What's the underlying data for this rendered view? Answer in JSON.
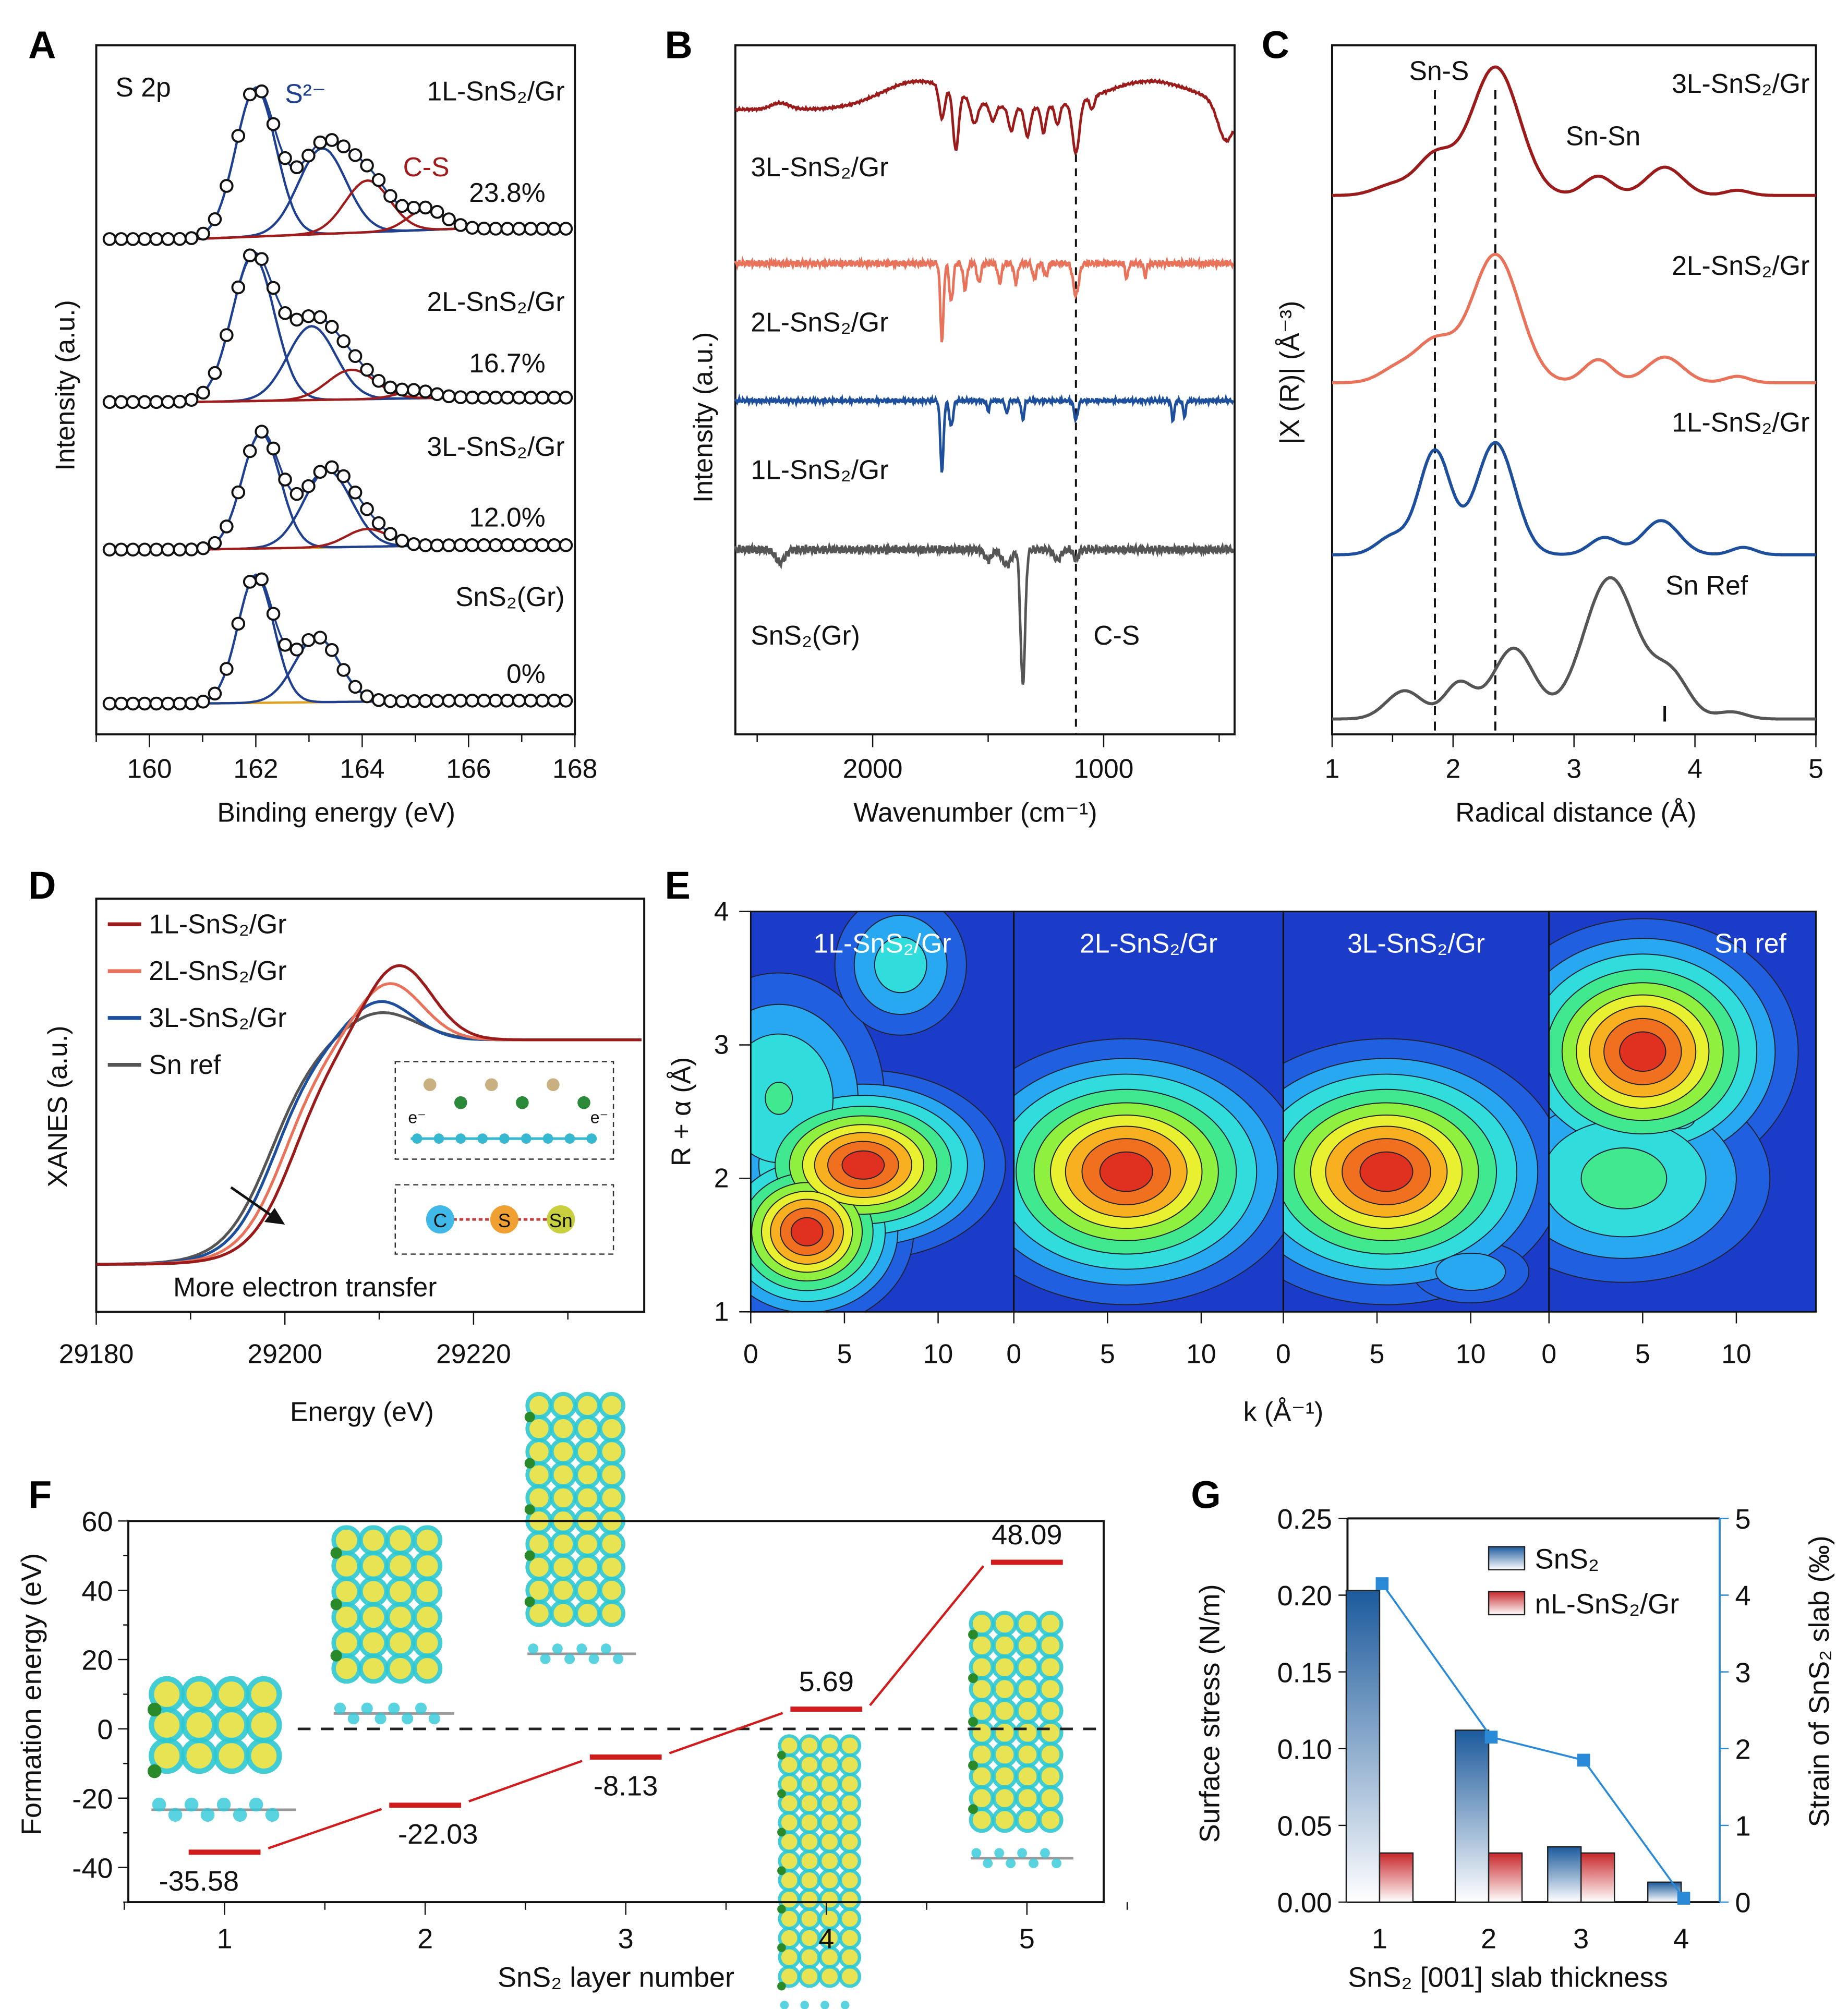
{
  "panel_letters": [
    "A",
    "B",
    "C",
    "D",
    "E",
    "F",
    "G"
  ],
  "colors": {
    "s2": "#1f3f8f",
    "cs": "#a01c1c",
    "background_fit": "#e0a020",
    "l1": "#1d4f9c",
    "l2": "#e8735a",
    "l3": "#9b1b1b",
    "ref": "#555555",
    "bar_snS2": "#1c5a9c",
    "bar_gr": "#c8282c",
    "strain": "#2a8ad8",
    "level": "#d01c1c"
  },
  "chart_data": [
    {
      "panel": "A",
      "type": "line",
      "title": "S 2p",
      "xlabel": "Binding energy (eV)",
      "ylabel": "Intensity (a.u.)",
      "xlim": [
        159,
        168
      ],
      "xticks": [
        160,
        162,
        164,
        166,
        168
      ],
      "x_reversed": false,
      "component_labels": {
        "s2": "S²⁻",
        "cs": "C-S"
      },
      "series": [
        {
          "name": "1L-SnS₂/Gr",
          "cs_fraction": "23.8%",
          "s2_peaks": [
            [
              162.0,
              1.0,
              0.38
            ],
            [
              163.25,
              0.58,
              0.45
            ]
          ],
          "cs_peaks": [
            [
              164.1,
              0.35,
              0.42
            ],
            [
              165.2,
              0.14,
              0.35
            ]
          ],
          "tail": 0.07
        },
        {
          "name": "2L-SnS₂/Gr",
          "cs_fraction": "16.7%",
          "s2_peaks": [
            [
              161.95,
              0.98,
              0.4
            ],
            [
              163.05,
              0.5,
              0.45
            ]
          ],
          "cs_peaks": [
            [
              163.8,
              0.2,
              0.45
            ],
            [
              165.0,
              0.05,
              0.35
            ]
          ],
          "tail": 0.03
        },
        {
          "name": "3L-SnS₂/Gr",
          "cs_fraction": "12.0%",
          "s2_peaks": [
            [
              162.1,
              0.78,
              0.36
            ],
            [
              163.35,
              0.52,
              0.45
            ]
          ],
          "cs_peaks": [
            [
              164.1,
              0.12,
              0.4
            ]
          ],
          "tail": 0.03
        },
        {
          "name": "SnS₂(Gr)",
          "cs_fraction": "0%",
          "s2_peaks": [
            [
              162.0,
              0.86,
              0.34
            ],
            [
              163.15,
              0.44,
              0.42
            ]
          ],
          "cs_peaks": [],
          "tail": 0.02
        }
      ]
    },
    {
      "panel": "B",
      "type": "line",
      "xlabel": "Wavenumber (cm⁻¹)",
      "ylabel": "Intensity (a.u.)",
      "xlim": [
        2600,
        430
      ],
      "xticks": [
        2000,
        1000
      ],
      "x_reversed": true,
      "marker_line_cm": 1120,
      "marker_label": "C-S",
      "series": [
        {
          "name": "3L-SnS₂/Gr",
          "features": [
            [
              2400,
              -5,
              40
            ],
            [
              1800,
              -22,
              160
            ],
            [
              1700,
              25,
              12
            ],
            [
              1640,
              45,
              12
            ],
            [
              1560,
              18,
              15
            ],
            [
              1480,
              12,
              12
            ],
            [
              1400,
              18,
              12
            ],
            [
              1330,
              22,
              12
            ],
            [
              1260,
              20,
              10
            ],
            [
              1200,
              15,
              10
            ],
            [
              1120,
              40,
              15
            ],
            [
              1050,
              10,
              10
            ],
            [
              800,
              -22,
              200
            ],
            [
              470,
              30,
              35
            ]
          ],
          "noise": 1
        },
        {
          "name": "2L-SnS₂/Gr",
          "features": [
            [
              1700,
              60,
              7
            ],
            [
              1660,
              30,
              8
            ],
            [
              1600,
              20,
              8
            ],
            [
              1540,
              15,
              8
            ],
            [
              1450,
              15,
              8
            ],
            [
              1380,
              15,
              8
            ],
            [
              1300,
              12,
              8
            ],
            [
              1250,
              10,
              8
            ],
            [
              1120,
              25,
              12
            ],
            [
              900,
              12,
              6
            ],
            [
              820,
              10,
              6
            ]
          ],
          "noise": 3
        },
        {
          "name": "1L-SnS₂/Gr",
          "features": [
            [
              1700,
              55,
              7
            ],
            [
              1660,
              20,
              8
            ],
            [
              1500,
              8,
              6
            ],
            [
              1420,
              10,
              6
            ],
            [
              1350,
              15,
              6
            ],
            [
              1120,
              15,
              8
            ],
            [
              700,
              15,
              6
            ],
            [
              650,
              12,
              6
            ]
          ],
          "noise": 2
        },
        {
          "name": "SnS₂(Gr)",
          "features": [
            [
              2400,
              10,
              20
            ],
            [
              1500,
              8,
              15
            ],
            [
              1420,
              12,
              20
            ],
            [
              1350,
              105,
              10
            ],
            [
              1200,
              8,
              15
            ],
            [
              1120,
              8,
              10
            ]
          ],
          "noise": 4
        }
      ]
    },
    {
      "panel": "C",
      "type": "line",
      "xlabel": "Radical distance (Å)",
      "ylabel": "|X (R)| (Å⁻³)",
      "xlim": [
        1,
        5
      ],
      "xticks": [
        1,
        2,
        3,
        4,
        5
      ],
      "marker_lines": [
        1.85,
        2.35
      ],
      "bond_labels": [
        "Sn-S",
        "Sn-Sn"
      ],
      "series": [
        {
          "name": "3L-SnS₂/Gr",
          "peaks": [
            [
              1.5,
              0.08,
              0.15
            ],
            [
              1.85,
              0.3,
              0.15
            ],
            [
              2.35,
              1.0,
              0.2
            ],
            [
              3.2,
              0.15,
              0.12
            ],
            [
              3.75,
              0.22,
              0.15
            ],
            [
              4.35,
              0.04,
              0.1
            ]
          ]
        },
        {
          "name": "2L-SnS₂/Gr",
          "peaks": [
            [
              1.55,
              0.12,
              0.15
            ],
            [
              1.85,
              0.3,
              0.15
            ],
            [
              2.35,
              1.0,
              0.2
            ],
            [
              3.2,
              0.18,
              0.12
            ],
            [
              3.75,
              0.2,
              0.15
            ],
            [
              4.35,
              0.05,
              0.1
            ]
          ]
        },
        {
          "name": "1L-SnS₂/Gr",
          "peaks": [
            [
              1.5,
              0.15,
              0.13
            ],
            [
              1.85,
              0.85,
              0.13
            ],
            [
              2.35,
              0.92,
              0.16
            ],
            [
              3.25,
              0.14,
              0.12
            ],
            [
              3.72,
              0.28,
              0.15
            ],
            [
              4.4,
              0.06,
              0.1
            ]
          ]
        },
        {
          "name": "Sn Ref",
          "peaks": [
            [
              1.6,
              0.2,
              0.15
            ],
            [
              2.05,
              0.25,
              0.12
            ],
            [
              2.5,
              0.5,
              0.17
            ],
            [
              3.3,
              1.0,
              0.22
            ],
            [
              3.8,
              0.3,
              0.15
            ],
            [
              4.3,
              0.05,
              0.12
            ]
          ]
        }
      ]
    },
    {
      "panel": "D",
      "type": "line",
      "xlabel": "Energy (eV)",
      "ylabel": "XANES (a.u.)",
      "xlim": [
        29180,
        29238
      ],
      "xticks": [
        29180,
        29200,
        29220
      ],
      "annotation": "More electron transfer",
      "inset_labels": {
        "c": "C",
        "s": "S",
        "sn": "Sn",
        "electron": "e⁻"
      },
      "legend": "top-left",
      "series": [
        {
          "name": "1L-SnS₂/Gr",
          "edge_eV": 29201.0,
          "edge_width": 2.4,
          "peak_eV": 29212,
          "peak_amp": 0.34,
          "peak_sigma": 3.5
        },
        {
          "name": "2L-SnS₂/Gr",
          "edge_eV": 29200.0,
          "edge_width": 2.4,
          "peak_eV": 29211,
          "peak_amp": 0.26,
          "peak_sigma": 3.5
        },
        {
          "name": "3L-SnS₂/Gr",
          "edge_eV": 29199.0,
          "edge_width": 2.4,
          "peak_eV": 29210,
          "peak_amp": 0.18,
          "peak_sigma": 3.5
        },
        {
          "name": "Sn ref",
          "edge_eV": 29198.5,
          "edge_width": 2.5,
          "peak_eV": 29210,
          "peak_amp": 0.13,
          "peak_sigma": 4
        }
      ]
    },
    {
      "panel": "E",
      "type": "heatmap",
      "xlabel": "k (Å⁻¹)",
      "ylabel": "R + α (Å)",
      "xlim": [
        0,
        14
      ],
      "ylim": [
        1,
        4
      ],
      "xticks": [
        0,
        5,
        10
      ],
      "yticks": [
        1,
        2,
        3,
        4
      ],
      "maps": [
        {
          "name": "1L-SnS₂/Gr",
          "hotspots": [
            [
              6,
              2.1,
              1.0,
              3.2,
              0.3
            ],
            [
              3,
              1.6,
              1.0,
              2.4,
              0.3
            ],
            [
              1.5,
              2.6,
              0.35,
              3,
              0.5
            ],
            [
              8,
              3.6,
              0.28,
              2,
              0.3
            ]
          ]
        },
        {
          "name": "2L-SnS₂/Gr",
          "hotspots": [
            [
              6,
              2.05,
              1.0,
              4,
              0.42
            ]
          ]
        },
        {
          "name": "3L-SnS₂/Gr",
          "hotspots": [
            [
              5.5,
              2.05,
              1.0,
              4,
              0.42
            ],
            [
              10,
              1.3,
              0.2,
              2,
              0.15
            ]
          ]
        },
        {
          "name": "Sn ref",
          "hotspots": [
            [
              5,
              2.95,
              1.0,
              3.5,
              0.42
            ],
            [
              4,
              2.0,
              0.4,
              4,
              0.4
            ],
            [
              7,
              2.45,
              0.3,
              1,
              0.1
            ]
          ]
        }
      ]
    },
    {
      "panel": "F",
      "type": "line",
      "xlabel": "SnS₂ layer number",
      "ylabel": "Formation energy (eV)",
      "x": [
        1,
        2,
        3,
        4,
        5
      ],
      "values": [
        -35.58,
        -22.03,
        -8.13,
        5.69,
        48.09
      ],
      "value_labels": [
        "-35.58",
        "-22.03",
        "-8.13",
        "5.69",
        "48.09"
      ],
      "xticks": [
        1,
        2,
        3,
        4,
        5
      ],
      "ylim": [
        -50,
        60
      ],
      "yticks": [
        -40,
        -20,
        0,
        20,
        40,
        60
      ]
    },
    {
      "panel": "G",
      "type": "bar",
      "xlabel": "SnS₂ [001] slab thickness",
      "ylabel": "Surface stress (N/m)",
      "ylabel_right": "Strain of SnS₂ slab (‰)",
      "categories": [
        "1",
        "2",
        "3",
        "4"
      ],
      "ylim": [
        0,
        0.25
      ],
      "yticks": [
        "0.00",
        "0.05",
        "0.10",
        "0.15",
        "0.20",
        "0.25"
      ],
      "ylim_right": [
        0,
        5
      ],
      "yticks_right": [
        "0",
        "1",
        "2",
        "3",
        "4",
        "5"
      ],
      "legend": "top-right",
      "series": [
        {
          "name": "SnS₂",
          "values": [
            0.203,
            0.112,
            0.036,
            0.013
          ]
        },
        {
          "name": "nL-SnS₂/Gr",
          "values": [
            0.032,
            0.032,
            0.032,
            null
          ]
        },
        {
          "name": "strain",
          "axis": "right",
          "values": [
            4.15,
            2.15,
            1.85,
            0.05
          ]
        }
      ]
    }
  ]
}
